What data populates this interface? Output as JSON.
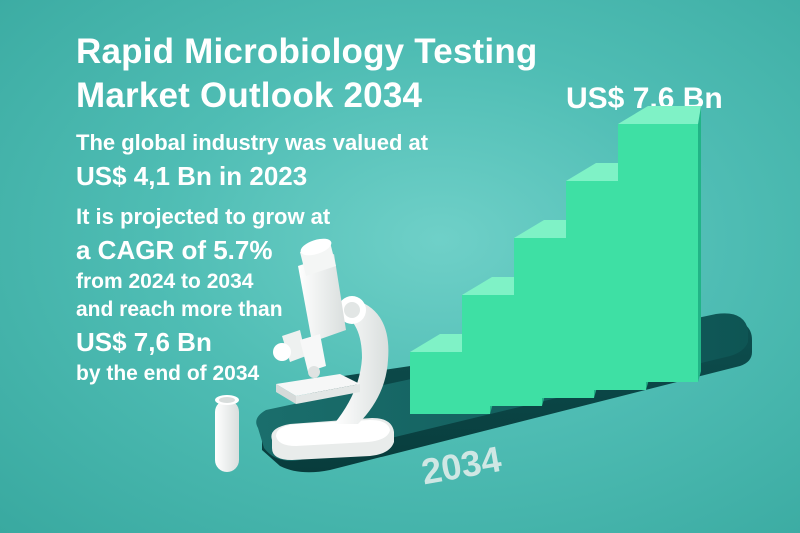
{
  "title": {
    "line1": "Rapid Microbiology Testing",
    "line2": "Market Outlook 2034"
  },
  "valued": {
    "line1": "The global industry was valued at",
    "line2": "US$ 4,1 Bn in 2023"
  },
  "projection": {
    "line1": "It is projected to grow at",
    "line2": "a CAGR of 5.7%",
    "line3": "from 2024 to 2034",
    "line4": "and reach more than",
    "line5": "US$ 7,6 Bn",
    "line6": "by the end of 2034"
  },
  "callout": "US$ 7,6 Bn",
  "platform_label": "2034",
  "colors": {
    "background": "#4fbdb4",
    "bar_front": "#3ee0a4",
    "bar_top": "#7ff2c6",
    "bar_side": "#22b487",
    "platform": "#0f5d5d",
    "microscope": "#f2f4f3"
  },
  "icons": [
    "microscope-icon",
    "test-tube-icon"
  ],
  "chart_data": {
    "type": "bar",
    "categories": [
      "",
      "",
      "",
      "",
      ""
    ],
    "values": [
      1,
      2,
      3,
      4,
      5
    ],
    "title": "",
    "xlabel": "",
    "ylabel": "",
    "ylim": [
      0,
      5
    ],
    "grid": false
  }
}
